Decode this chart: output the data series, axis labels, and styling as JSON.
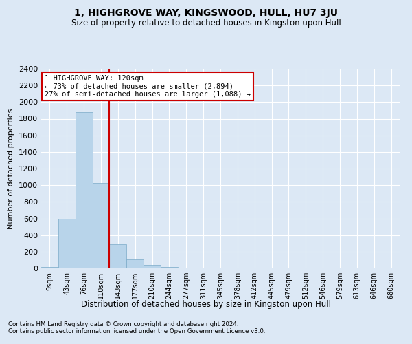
{
  "title": "1, HIGHGROVE WAY, KINGSWOOD, HULL, HU7 3JU",
  "subtitle": "Size of property relative to detached houses in Kingston upon Hull",
  "xlabel_bottom": "Distribution of detached houses by size in Kingston upon Hull",
  "ylabel": "Number of detached properties",
  "footer_line1": "Contains HM Land Registry data © Crown copyright and database right 2024.",
  "footer_line2": "Contains public sector information licensed under the Open Government Licence v3.0.",
  "annotation_line1": "1 HIGHGROVE WAY: 120sqm",
  "annotation_line2": "← 73% of detached houses are smaller (2,894)",
  "annotation_line3": "27% of semi-detached houses are larger (1,088) →",
  "bar_color": "#b8d4ea",
  "bar_edge_color": "#7aaac8",
  "vline_color": "#cc0000",
  "bin_labels": [
    "9sqm",
    "43sqm",
    "76sqm",
    "110sqm",
    "143sqm",
    "177sqm",
    "210sqm",
    "244sqm",
    "277sqm",
    "311sqm",
    "345sqm",
    "378sqm",
    "412sqm",
    "445sqm",
    "479sqm",
    "512sqm",
    "546sqm",
    "579sqm",
    "613sqm",
    "646sqm",
    "680sqm"
  ],
  "bar_values": [
    18,
    600,
    1880,
    1030,
    290,
    110,
    40,
    18,
    5,
    0,
    0,
    0,
    0,
    0,
    0,
    0,
    0,
    0,
    0,
    0,
    0
  ],
  "ylim": [
    0,
    2400
  ],
  "yticks": [
    0,
    200,
    400,
    600,
    800,
    1000,
    1200,
    1400,
    1600,
    1800,
    2000,
    2200,
    2400
  ],
  "bg_color": "#dce8f5",
  "grid_color": "#ffffff",
  "annotation_box_facecolor": "#ffffff",
  "annotation_box_edge": "#cc0000",
  "vline_x_index": 3.5
}
